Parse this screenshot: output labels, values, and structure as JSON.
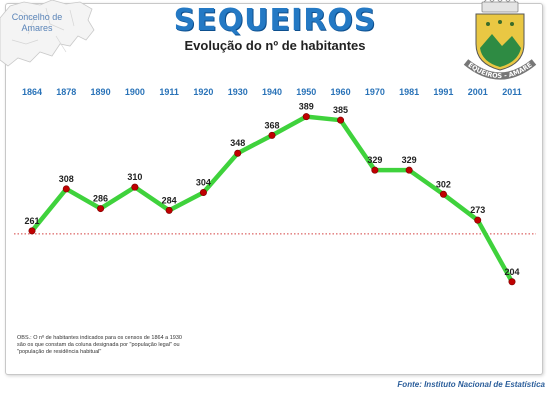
{
  "header": {
    "region_label_line1": "Concelho de",
    "region_label_line2": "Amares",
    "title": "SEQUEIROS",
    "subtitle": "Evolução do nº de habitantes",
    "crest_text": "SEQUEIROS - AMARES"
  },
  "chart_data": {
    "type": "line",
    "title": "SEQUEIROS",
    "subtitle": "Evolução do nº de habitantes",
    "x": [
      "1864",
      "1878",
      "1890",
      "1900",
      "1911",
      "1920",
      "1930",
      "1940",
      "1950",
      "1960",
      "1970",
      "1981",
      "1991",
      "2001",
      "2011"
    ],
    "values": [
      261,
      308,
      286,
      310,
      284,
      304,
      348,
      368,
      389,
      385,
      329,
      329,
      302,
      273,
      204
    ],
    "ylim": [
      150,
      430
    ],
    "reference_line": 261,
    "grid": false,
    "legend": "none",
    "line_color": "#3fd23c",
    "marker_color": "#c00000",
    "reference_color": "#d44040"
  },
  "footer": {
    "note": "OBS.: O nº de habitantes indicados para os censos de 1864 a 1930 são os que constam da coluna designada por \"população legal\" ou \"população de residência habitual\"",
    "source": "Fonte: Instituto Nacional de Estatística"
  }
}
